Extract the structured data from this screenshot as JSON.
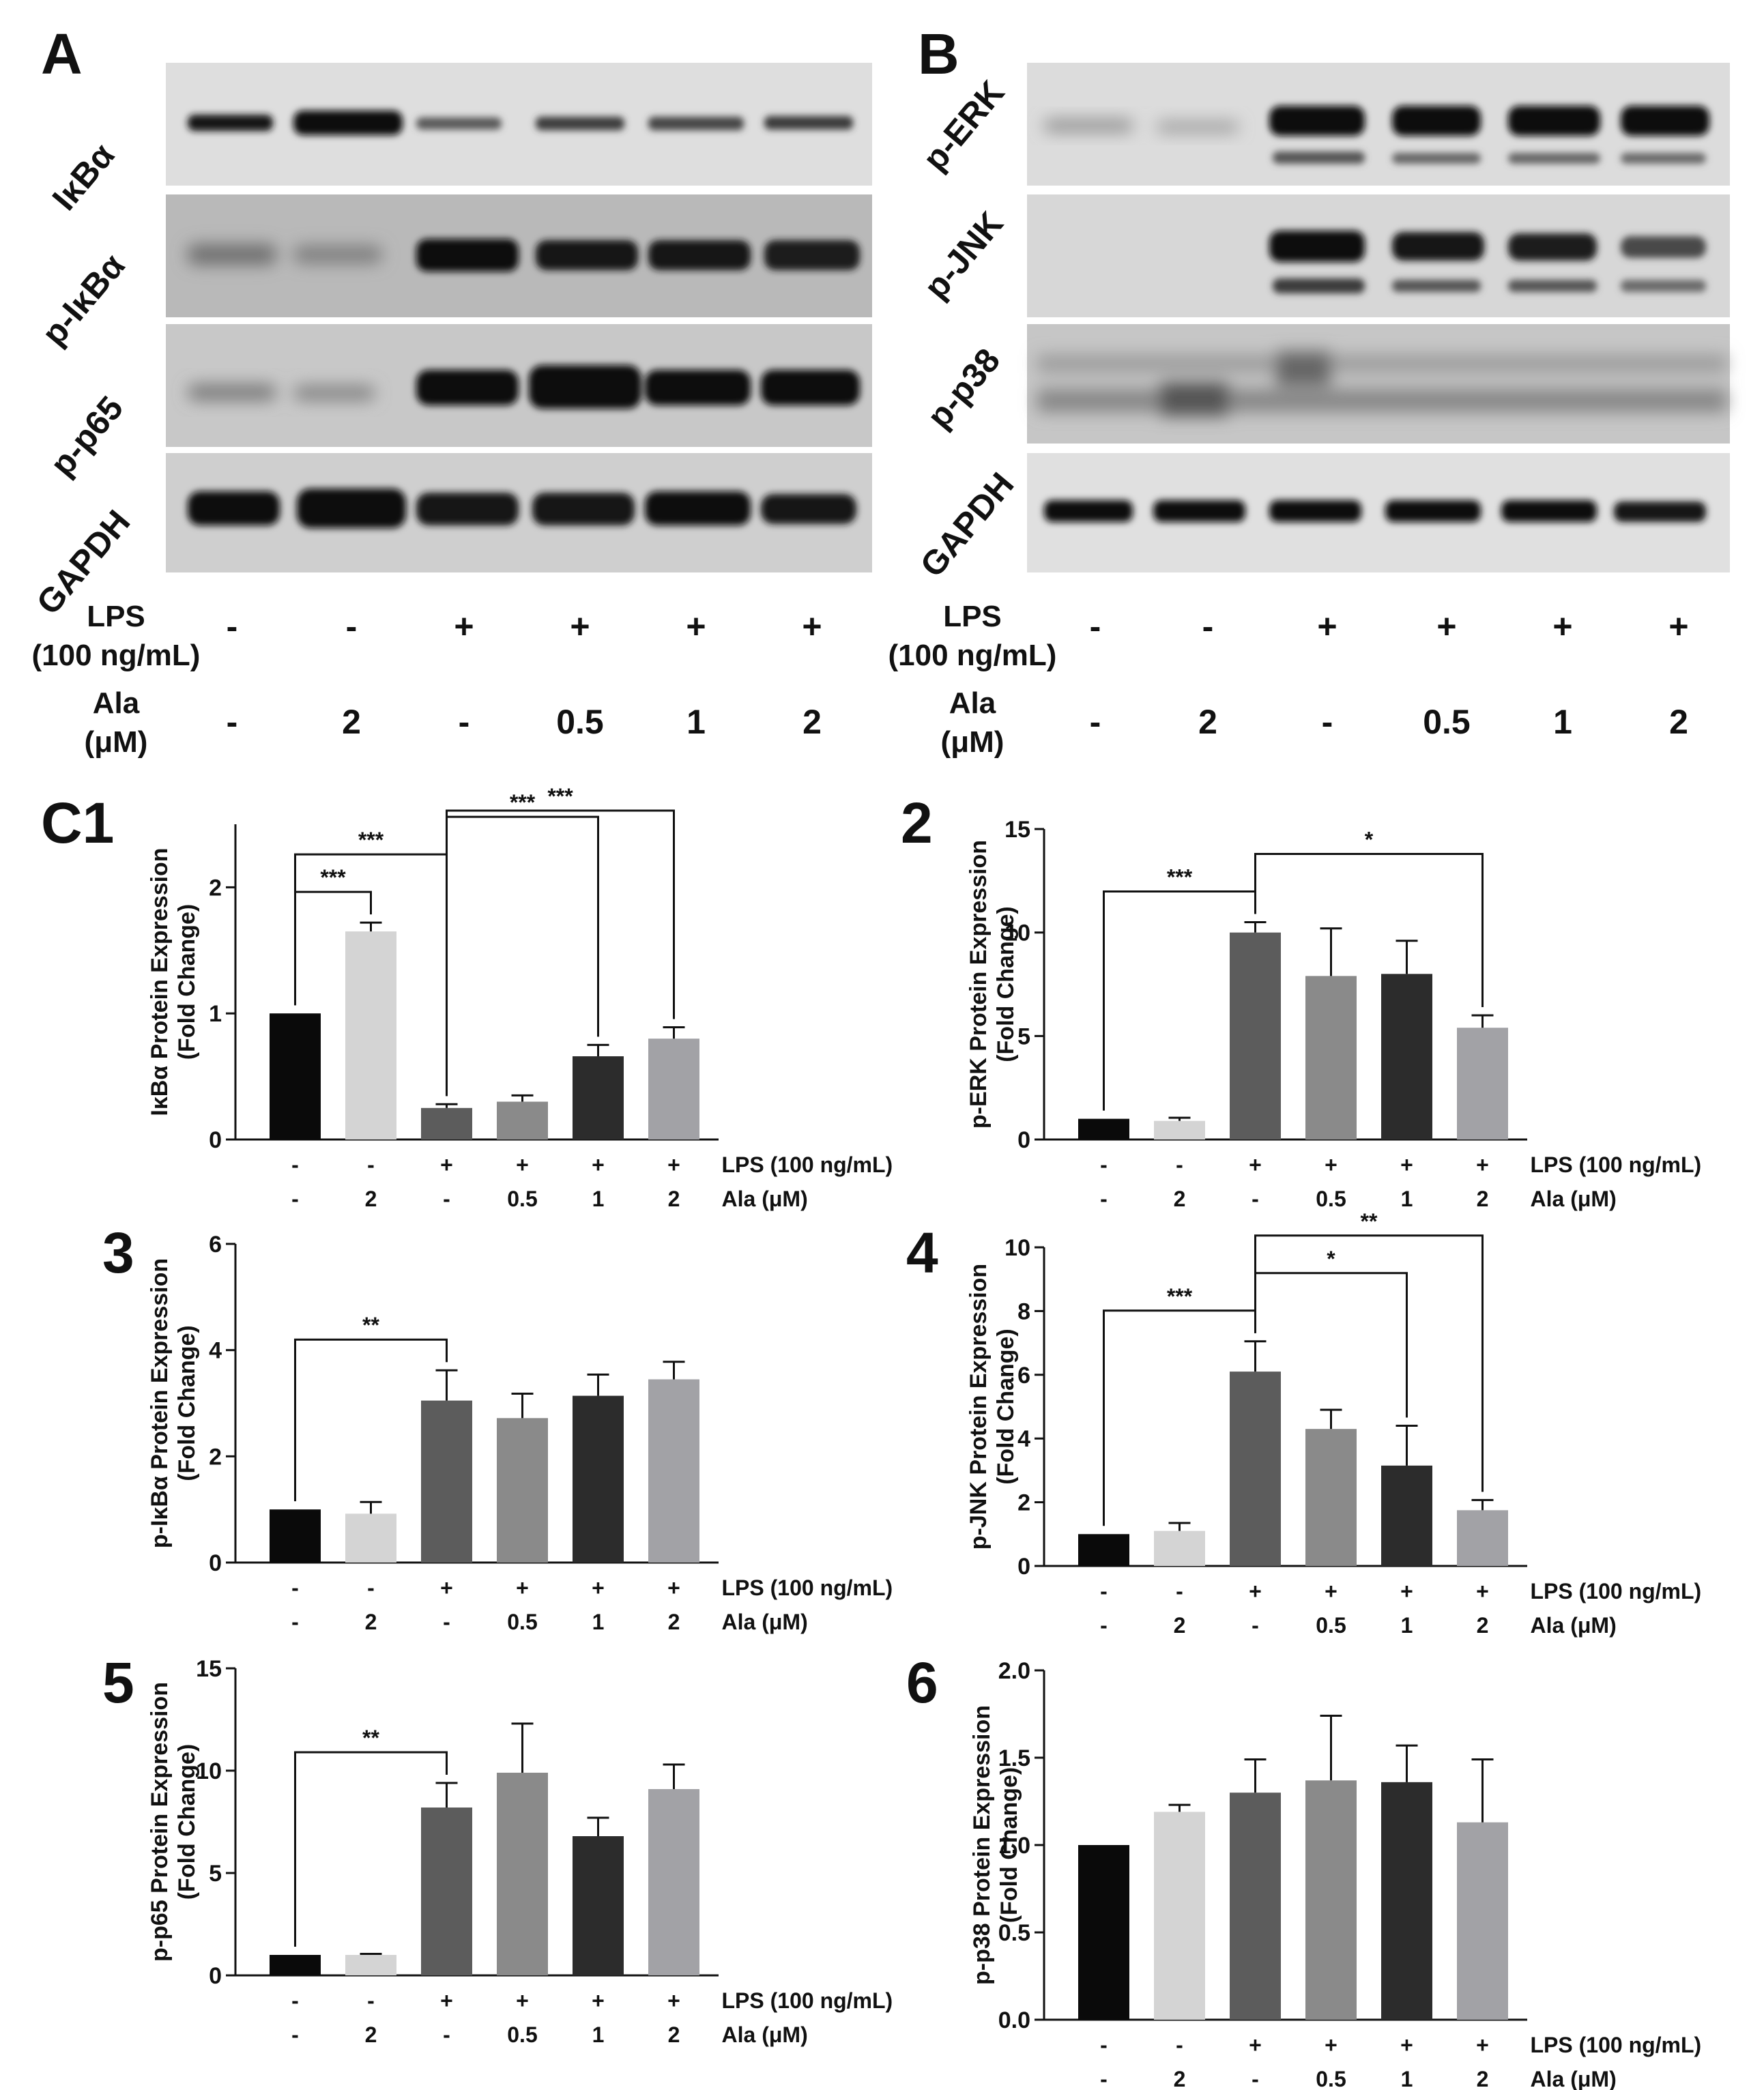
{
  "panels": {
    "A": "A",
    "B": "B",
    "C1": "C1",
    "C2": "2",
    "C3": "3",
    "C4": "4",
    "C5": "5",
    "C6": "6"
  },
  "blot_A": {
    "rows": [
      "IκBα",
      "p-IκBα",
      "p-p65",
      "GAPDH"
    ],
    "conditions": {
      "lps_label_1": "LPS",
      "lps_label_2": "(100 ng/mL)",
      "lps": [
        "-",
        "-",
        "+",
        "+",
        "+",
        "+"
      ],
      "ala_label_1": "Ala",
      "ala_label_2": "(μM)",
      "ala": [
        "-",
        "2",
        "-",
        "0.5",
        "1",
        "2"
      ]
    }
  },
  "blot_B": {
    "rows": [
      "p-ERK",
      "p-JNK",
      "p-p38",
      "GAPDH"
    ],
    "conditions": {
      "lps_label_1": "LPS",
      "lps_label_2": "(100 ng/mL)",
      "lps": [
        "-",
        "-",
        "+",
        "+",
        "+",
        "+"
      ],
      "ala_label_1": "Ala",
      "ala_label_2": "(μM)",
      "ala": [
        "-",
        "2",
        "-",
        "0.5",
        "1",
        "2"
      ]
    }
  },
  "colors": {
    "bars": [
      "#0a0a0a",
      "#d4d4d4",
      "#5c5c5c",
      "#8a8a8a",
      "#2c2c2c",
      "#a2a2a6"
    ],
    "axis": "#111111"
  },
  "chart_data": [
    {
      "id": "C1",
      "type": "bar",
      "ylabel": "IκBα Protein Expression",
      "ylabel2": "(Fold Change)",
      "ylim": [
        0,
        2.5
      ],
      "yticks": [
        "0",
        "1",
        "2"
      ],
      "lps": [
        "-",
        "-",
        "+",
        "+",
        "+",
        "+"
      ],
      "lps_label": "LPS (100 ng/mL)",
      "ala": [
        "-",
        "2",
        "-",
        "0.5",
        "1",
        "2"
      ],
      "ala_label": "Ala (μM)",
      "values": [
        1.0,
        1.65,
        0.25,
        0.3,
        0.66,
        0.8
      ],
      "errors": [
        0,
        0.07,
        0.03,
        0.05,
        0.09,
        0.09
      ],
      "significance": [
        {
          "from": 0,
          "to": 1,
          "label": "***"
        },
        {
          "from": 0,
          "to": 2,
          "label": "***"
        },
        {
          "from": 2,
          "to": 4,
          "label": "***"
        },
        {
          "from": 2,
          "to": 5,
          "label": "***"
        }
      ]
    },
    {
      "id": "C2",
      "type": "bar",
      "ylabel": "p-ERK Protein Expression",
      "ylabel2": "(Fold Change)",
      "ylim": [
        0,
        15
      ],
      "yticks": [
        "0",
        "5",
        "10",
        "15"
      ],
      "lps": [
        "-",
        "-",
        "+",
        "+",
        "+",
        "+"
      ],
      "lps_label": "LPS (100 ng/mL)",
      "ala": [
        "-",
        "2",
        "-",
        "0.5",
        "1",
        "2"
      ],
      "ala_label": "Ala (μM)",
      "values": [
        1.0,
        0.9,
        10.0,
        7.9,
        8.0,
        5.4
      ],
      "errors": [
        0,
        0.15,
        0.5,
        2.3,
        1.6,
        0.6
      ],
      "significance": [
        {
          "from": 0,
          "to": 2,
          "label": "***"
        },
        {
          "from": 2,
          "to": 5,
          "label": "*"
        }
      ]
    },
    {
      "id": "C3",
      "type": "bar",
      "ylabel": "p-IκBα Protein Expression",
      "ylabel2": "(Fold Change)",
      "ylim": [
        0,
        6
      ],
      "yticks": [
        "0",
        "2",
        "4",
        "6"
      ],
      "lps": [
        "-",
        "-",
        "+",
        "+",
        "+",
        "+"
      ],
      "lps_label": "LPS (100 ng/mL)",
      "ala": [
        "-",
        "2",
        "-",
        "0.5",
        "1",
        "2"
      ],
      "ala_label": "Ala (μM)",
      "values": [
        1.0,
        0.92,
        3.05,
        2.72,
        3.14,
        3.45
      ],
      "errors": [
        0,
        0.22,
        0.57,
        0.46,
        0.4,
        0.33
      ],
      "significance": [
        {
          "from": 0,
          "to": 2,
          "label": "**"
        }
      ]
    },
    {
      "id": "C4",
      "type": "bar",
      "ylabel": "p-JNK Protein Expression",
      "ylabel2": "(Fold Change)",
      "ylim": [
        0,
        10
      ],
      "yticks": [
        "0",
        "2",
        "4",
        "6",
        "8",
        "10"
      ],
      "lps": [
        "-",
        "-",
        "+",
        "+",
        "+",
        "+"
      ],
      "lps_label": "LPS (100 ng/mL)",
      "ala": [
        "-",
        "2",
        "-",
        "0.5",
        "1",
        "2"
      ],
      "ala_label": "Ala (μM)",
      "values": [
        1.0,
        1.1,
        6.1,
        4.3,
        3.15,
        1.75
      ],
      "errors": [
        0,
        0.25,
        0.95,
        0.6,
        1.25,
        0.32
      ],
      "significance": [
        {
          "from": 0,
          "to": 2,
          "label": "***"
        },
        {
          "from": 2,
          "to": 4,
          "label": "*"
        },
        {
          "from": 2,
          "to": 5,
          "label": "**"
        }
      ]
    },
    {
      "id": "C5",
      "type": "bar",
      "ylabel": "p-p65 Protein Expression",
      "ylabel2": "(Fold Change)",
      "ylim": [
        0,
        15
      ],
      "yticks": [
        "0",
        "5",
        "10",
        "15"
      ],
      "lps": [
        "-",
        "-",
        "+",
        "+",
        "+",
        "+"
      ],
      "lps_label": "LPS (100 ng/mL)",
      "ala": [
        "-",
        "2",
        "-",
        "0.5",
        "1",
        "2"
      ],
      "ala_label": "Ala (μM)",
      "values": [
        1.0,
        1.0,
        8.2,
        9.9,
        6.8,
        9.1
      ],
      "errors": [
        0,
        0.05,
        1.2,
        2.4,
        0.9,
        1.2
      ],
      "significance": [
        {
          "from": 0,
          "to": 2,
          "label": "**"
        }
      ]
    },
    {
      "id": "C6",
      "type": "bar",
      "ylabel": "p-p38 Protein Expression",
      "ylabel2": "(Fold Change)",
      "ylim": [
        0,
        2.0
      ],
      "yticks": [
        "0.0",
        "0.5",
        "1.0",
        "1.5",
        "2.0"
      ],
      "lps": [
        "-",
        "-",
        "+",
        "+",
        "+",
        "+"
      ],
      "lps_label": "LPS (100 ng/mL)",
      "ala": [
        "-",
        "2",
        "-",
        "0.5",
        "1",
        "2"
      ],
      "ala_label": "Ala (μM)",
      "values": [
        1.0,
        1.19,
        1.3,
        1.37,
        1.36,
        1.13
      ],
      "errors": [
        0,
        0.04,
        0.19,
        0.37,
        0.21,
        0.36
      ],
      "significance": []
    }
  ]
}
